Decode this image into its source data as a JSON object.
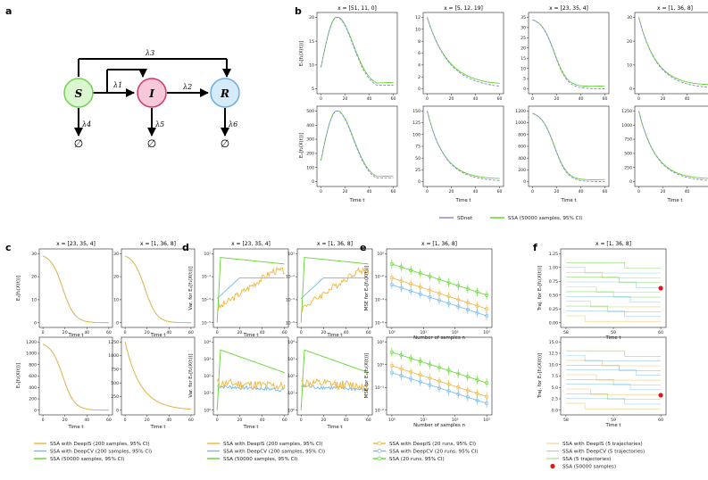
{
  "colors": {
    "sdnet": "#8c89d6",
    "ssa": "#5fd62e",
    "deepis": "#f0b43a",
    "deepcv": "#72b9ec",
    "red": "#dd1a1a",
    "nodeS": "#ddf6d2",
    "nodeS_edge": "#72d350",
    "nodeI": "#f7c8d9",
    "nodeI_edge": "#d4376e",
    "nodeR": "#d6ebfa",
    "nodeR_edge": "#6eaedf"
  },
  "panel_labels": {
    "a": "a",
    "b": "b",
    "c": "c",
    "d": "d",
    "e": "e",
    "f": "f"
  },
  "diagram": {
    "nodes": {
      "S": "S",
      "I": "I",
      "R": "R"
    },
    "rates": {
      "l1": "λ1",
      "l2": "λ2",
      "l3": "λ3",
      "l4": "λ4",
      "l5": "λ5",
      "l6": "λ6"
    },
    "null_symbol": "∅"
  },
  "panel_b": {
    "titles": [
      "x = [51, 11, 0]",
      "x = [5, 12, 19]",
      "x = [23, 35, 4]",
      "x = [1, 36, 8]"
    ],
    "ylabel_top": "Eₓ[f₁(X(t))]",
    "ylabel_bottom": "Eₓ[f₂(X(t))]",
    "xlabel": "Time t",
    "xticks": [
      "0",
      "20",
      "40",
      "60"
    ],
    "top_ticks": [
      [
        "5",
        "10",
        "15",
        "20"
      ],
      [
        "0",
        "2",
        "4",
        "6",
        "8",
        "10",
        "12"
      ],
      [
        "0",
        "5",
        "10",
        "15",
        "20",
        "25",
        "30",
        "35"
      ],
      [
        "0",
        "10",
        "20",
        "30"
      ]
    ],
    "bottom_ticks": [
      [
        "0",
        "100",
        "200",
        "300",
        "400",
        "500"
      ],
      [
        "0",
        "25",
        "50",
        "75",
        "100",
        "125",
        "150"
      ],
      [
        "0",
        "200",
        "400",
        "600",
        "800",
        "1000",
        "1200"
      ],
      [
        "0",
        "250",
        "500",
        "750",
        "1000",
        "1250"
      ]
    ],
    "legend": [
      "SDnet",
      "SSA (50000 samples, 95% CI)"
    ]
  },
  "panel_c": {
    "titles": [
      "x = [23, 35, 4]",
      "x = [1, 36, 8]"
    ],
    "ylabel_top": "Eₓ[f₁(X(t))]",
    "ylabel_bottom": "Eₓ[f₂(X(t))]",
    "xlabel": "Time t",
    "xticks": [
      "0",
      "20",
      "40",
      "60"
    ],
    "top_ticks": [
      [
        "0",
        "10",
        "20",
        "30"
      ],
      [
        "0",
        "10",
        "20",
        "30"
      ]
    ],
    "bottom_ticks": [
      [
        "0",
        "200",
        "400",
        "600",
        "800",
        "1000",
        "1200"
      ],
      [
        "0",
        "250",
        "500",
        "750",
        "1000",
        "1250"
      ]
    ],
    "legend": [
      "SSA with DeepIS (200 samples, 95% CI)",
      "SSA with DeepCV (200 samples, 95% CI)",
      "SSA (50000 samples, 95% CI)"
    ]
  },
  "panel_d": {
    "titles": [
      "x = [23, 35, 4]",
      "x = [1, 36, 8]"
    ],
    "ylabel_top": "Var. for Eₓ[f₁(X(t))]",
    "ylabel_bottom": "Var. for Eₓ[f₂(X(t))]",
    "xlabel": "Time t",
    "xticks": [
      "0",
      "20",
      "40",
      "60"
    ],
    "top_ticks": [
      [
        "10⁻⁵",
        "10⁻³",
        "10⁻¹",
        "10¹"
      ],
      [
        "10⁻⁵",
        "10⁻³",
        "10⁻¹",
        "10¹"
      ]
    ],
    "bottom_ticks": [
      [
        "10⁰",
        "10¹",
        "10²",
        "10³",
        "10⁴"
      ],
      [
        "10⁰",
        "10¹",
        "10²",
        "10³",
        "10⁴"
      ]
    ],
    "legend": [
      "SSA with DeepIS (200 samples, 95% CI)",
      "SSA with DeepCV (200 samples, 95% CI)",
      "SSA (50000 samples, 95% CI)"
    ]
  },
  "panel_e": {
    "title": "x = [1, 36, 8]",
    "ylabel_top": "MSE for Eₓ[f₁(X(t))]",
    "ylabel_bottom": "MSE for Eₓ[f₂(X(t))]",
    "xlabel": "Number of samples n",
    "xticks": [
      "10⁰",
      "10¹",
      "10²",
      "10³"
    ],
    "top_ticks": [
      "10⁻⁶",
      "10⁻⁴",
      "10⁻²",
      "10⁰"
    ],
    "bottom_ticks": [
      "10⁻²",
      "10⁻¹",
      "10¹",
      "10³"
    ],
    "legend": [
      "SSA with DeepIS (20 runs, 95% CI)",
      "SSA with DeepCV (20 runs, 95% CI)",
      "SSA (20 runs, 95% CI)"
    ]
  },
  "panel_f": {
    "title": "x = [1, 36, 8]",
    "ylabel_top": "Traj. for Eₓ[f₁(X(t))]",
    "ylabel_bottom": "Traj. for Eₓ[f₂(X(t))]",
    "xlabel": "Time t",
    "xticks": [
      "58",
      "59",
      "60"
    ],
    "top_ticks": [
      "0.00",
      "0.25",
      "0.50",
      "0.75",
      "1.00",
      "1.25"
    ],
    "bottom_ticks": [
      "0.0",
      "2.5",
      "5.0",
      "7.5",
      "10.0",
      "12.5",
      "15.0"
    ],
    "legend": [
      "SSA with DeepIS (5 trajectories)",
      "SSA with DeepCV (5 trajectories)",
      "SSA (5 trajectories)",
      "SSA (50000 samples)"
    ]
  },
  "chart_data": [
    {
      "panel": "b",
      "type": "line",
      "x": [
        0,
        60
      ],
      "series": [
        {
          "subplot": "b-top-1",
          "name": "SDnet",
          "peak": 22.5,
          "start": 11,
          "end": 3
        },
        {
          "subplot": "b-top-2",
          "name": "SDnet",
          "start": 12,
          "end": 0.6
        },
        {
          "subplot": "b-top-3",
          "name": "SDnet",
          "start": 34,
          "end": 1.5
        },
        {
          "subplot": "b-top-4",
          "name": "SDnet",
          "start": 35,
          "end": 0.8
        },
        {
          "subplot": "b-bottom-1",
          "name": "SDnet",
          "peak": 540,
          "start": 100,
          "end": 20
        },
        {
          "subplot": "b-bottom-2",
          "name": "SDnet",
          "start": 145,
          "end": 3
        },
        {
          "subplot": "b-bottom-3",
          "name": "SDnet",
          "start": 1250,
          "end": 30
        },
        {
          "subplot": "b-bottom-4",
          "name": "SDnet",
          "start": 1280,
          "end": 20
        }
      ]
    },
    {
      "panel": "c",
      "type": "line",
      "x": [
        0,
        60
      ],
      "note": "DeepIS, DeepCV and SSA curves overlap"
    },
    {
      "panel": "d",
      "type": "line",
      "yscale": "log",
      "x": [
        0,
        60
      ]
    },
    {
      "panel": "e",
      "type": "line",
      "xscale": "log",
      "yscale": "log",
      "x": [
        1,
        2,
        4,
        8,
        16,
        32,
        64,
        128,
        256,
        512,
        1000
      ]
    },
    {
      "panel": "f",
      "type": "line",
      "x": [
        58,
        60
      ],
      "red_point": {
        "top": [
          60,
          0.8
        ],
        "bottom": [
          60,
          1.6
        ]
      }
    }
  ]
}
